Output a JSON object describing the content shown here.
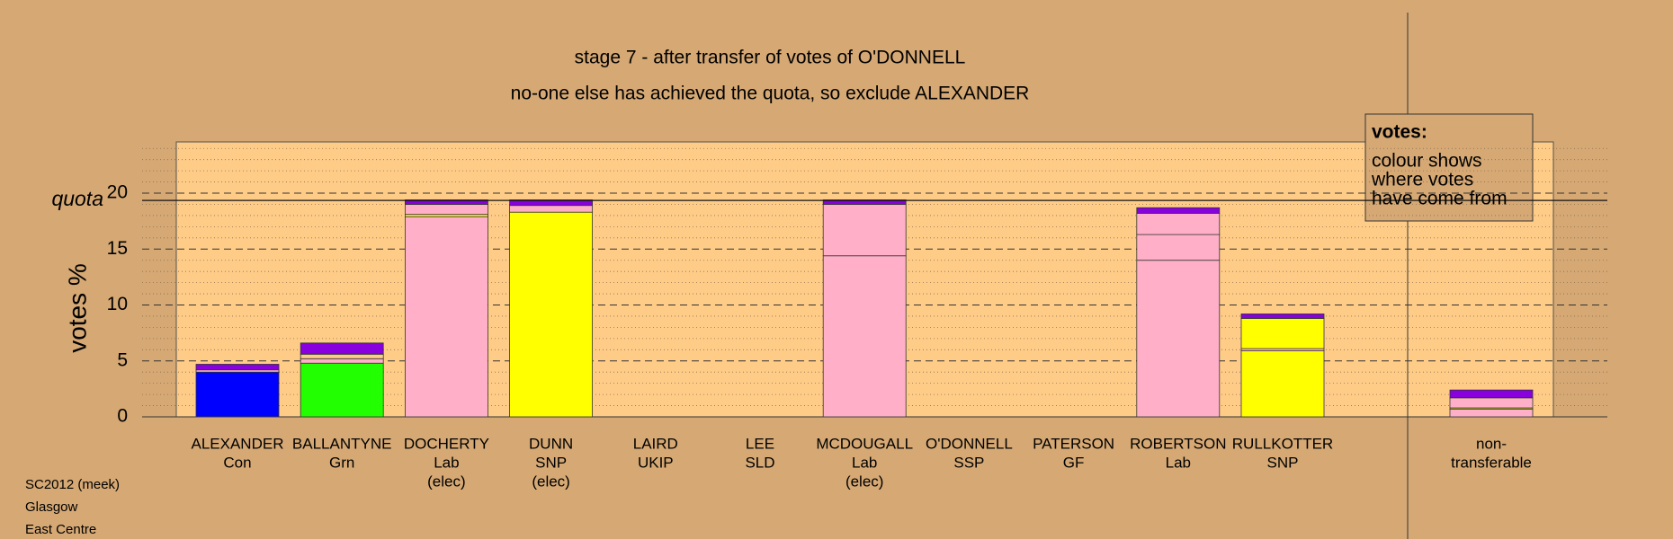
{
  "chart_data": {
    "type": "stacked-bar",
    "title": "stage 7 - after transfer of votes of O'DONNELL",
    "subtitle": "no-one else has achieved the quota, so exclude ALEXANDER",
    "y_label": "votes %",
    "quota_label": "quota",
    "quota": 19.35,
    "legend_title": "votes:",
    "legend_lines": [
      "colour shows",
      "where votes",
      "have come from"
    ],
    "footer": [
      "SC2012 (meek)",
      "Glasgow",
      "East Centre"
    ],
    "categories": [
      [
        "ALEXANDER",
        "Con"
      ],
      [
        "BALLANTYNE",
        "Grn"
      ],
      [
        "DOCHERTY",
        "Lab",
        "(elec)"
      ],
      [
        "DUNN",
        "SNP",
        "(elec)"
      ],
      [
        "LAIRD",
        "UKIP"
      ],
      [
        "LEE",
        "SLD"
      ],
      [
        "MCDOUGALL",
        "Lab",
        "(elec)"
      ],
      [
        "O'DONNELL",
        "SSP"
      ],
      [
        "PATERSON",
        "GF"
      ],
      [
        "ROBERTSON",
        "Lab"
      ],
      [
        "RULLKOTTER",
        "SNP"
      ],
      [
        "non-",
        "transferable"
      ]
    ],
    "stacks": [
      [
        {
          "value": 4.0,
          "color": "#0000ff"
        },
        {
          "value": 0.2,
          "color": "#ffb0c8"
        },
        {
          "value": 0.5,
          "color": "#8800dd"
        }
      ],
      [
        {
          "value": 4.8,
          "color": "#22ff00"
        },
        {
          "value": 0.4,
          "color": "#ffb0c8"
        },
        {
          "value": 0.4,
          "color": "#ffcc88"
        },
        {
          "value": 1.0,
          "color": "#8800dd"
        }
      ],
      [
        {
          "value": 17.9,
          "color": "#ffb0c8"
        },
        {
          "value": 0.2,
          "color": "#ffff00"
        },
        {
          "value": 0.9,
          "color": "#ffb0c8"
        },
        {
          "value": 0.4,
          "color": "#8800dd"
        }
      ],
      [
        {
          "value": 18.3,
          "color": "#ffff00"
        },
        {
          "value": 0.6,
          "color": "#ffb0c8"
        },
        {
          "value": 0.5,
          "color": "#8800dd"
        }
      ],
      [],
      [],
      [
        {
          "value": 14.4,
          "color": "#ffb0c8"
        },
        {
          "value": 4.6,
          "color": "#ffb0c8"
        },
        {
          "value": 0.4,
          "color": "#8800dd"
        }
      ],
      [],
      [],
      [
        {
          "value": 14.0,
          "color": "#ffb0c8"
        },
        {
          "value": 2.3,
          "color": "#ffb0c8"
        },
        {
          "value": 1.9,
          "color": "#ffb0c8"
        },
        {
          "value": 0.5,
          "color": "#8800dd"
        }
      ],
      [
        {
          "value": 5.9,
          "color": "#ffff00"
        },
        {
          "value": 0.2,
          "color": "#ffb0c8"
        },
        {
          "value": 2.7,
          "color": "#ffff00"
        },
        {
          "value": 0.4,
          "color": "#8800dd"
        }
      ],
      [
        {
          "value": 0.7,
          "color": "#ffb0c8"
        },
        {
          "value": 0.1,
          "color": "#ffff00"
        },
        {
          "value": 0.9,
          "color": "#ffb0c8"
        },
        {
          "value": 0.7,
          "color": "#8800dd"
        }
      ]
    ],
    "ylim": [
      0,
      24.5
    ],
    "yticks": [
      0,
      5,
      10,
      15,
      20
    ],
    "minor_yticks": [
      1,
      2,
      3,
      4,
      6,
      7,
      8,
      9,
      11,
      12,
      13,
      14,
      16,
      17,
      18,
      19,
      21,
      22,
      23,
      24
    ]
  }
}
